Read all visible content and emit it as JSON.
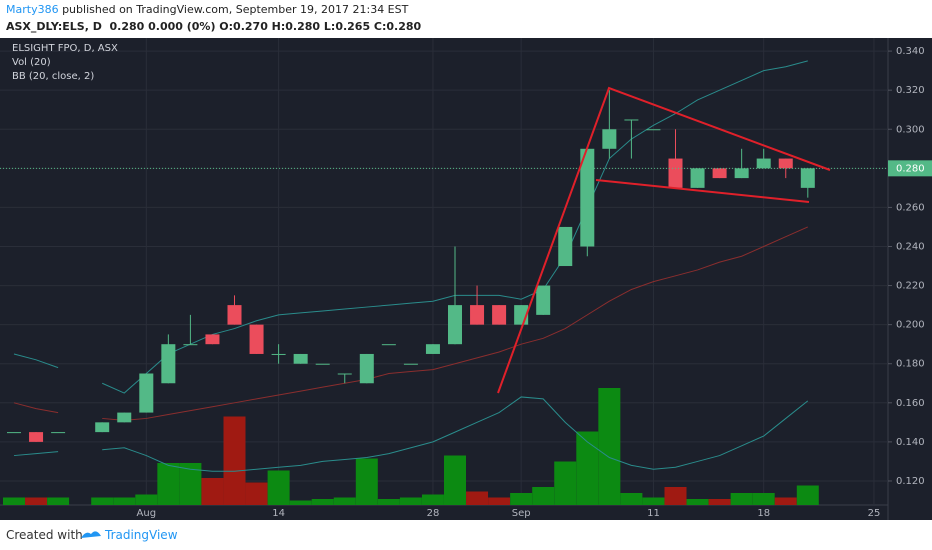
{
  "header": {
    "author": "Marty386",
    "published": "published on TradingView.com, September 19, 2017 21:34 EST",
    "symbol_line": "ASX_DLY:ELS, D  0.280 0.000 (0%) O:0.270 H:0.280 L:0.265 C:0.280"
  },
  "footer": {
    "created_with": "Created with",
    "brand": "TradingView"
  },
  "chart_data": {
    "type": "candlestick",
    "legend": [
      "ELSIGHT FPO, D, ASX",
      "Vol (20)",
      "BB (20, close, 2)"
    ],
    "categories": [
      null,
      null,
      null,
      null,
      null,
      null,
      "Aug",
      null,
      null,
      null,
      null,
      null,
      "14",
      null,
      null,
      null,
      null,
      null,
      null,
      "28",
      null,
      null,
      null,
      "Sep",
      null,
      null,
      null,
      null,
      null,
      "11",
      null,
      null,
      null,
      null,
      "18",
      null,
      null,
      null,
      null,
      "25"
    ],
    "open": [
      0.145,
      0.145,
      0.145,
      null,
      0.145,
      0.15,
      0.155,
      0.17,
      0.19,
      0.195,
      0.21,
      0.2,
      0.185,
      0.18,
      0.18,
      0.175,
      0.17,
      0.19,
      0.18,
      0.185,
      0.19,
      0.21,
      0.21,
      0.2,
      0.205,
      0.23,
      0.24,
      0.29,
      0.305,
      0.3,
      0.285,
      0.27,
      0.28,
      0.275,
      0.28,
      0.285,
      0.27,
      null,
      null,
      null
    ],
    "high": [
      0.145,
      0.145,
      0.145,
      null,
      0.15,
      0.155,
      0.175,
      0.195,
      0.205,
      0.195,
      0.215,
      0.2,
      0.19,
      0.185,
      0.18,
      0.175,
      0.185,
      0.19,
      0.18,
      0.19,
      0.24,
      0.22,
      0.21,
      0.21,
      0.22,
      0.25,
      0.29,
      0.32,
      0.305,
      0.3,
      0.3,
      0.28,
      0.28,
      0.29,
      0.29,
      0.285,
      0.28,
      null,
      null,
      null
    ],
    "low": [
      0.145,
      0.14,
      0.145,
      null,
      0.145,
      0.15,
      0.155,
      0.17,
      0.19,
      0.19,
      0.2,
      0.185,
      0.18,
      0.18,
      0.18,
      0.17,
      0.17,
      0.19,
      0.18,
      0.185,
      0.19,
      0.2,
      0.2,
      0.2,
      0.205,
      0.23,
      0.235,
      0.285,
      0.285,
      0.3,
      0.27,
      0.27,
      0.275,
      0.275,
      0.28,
      0.275,
      0.265,
      null,
      null,
      null
    ],
    "close": [
      0.145,
      0.14,
      0.145,
      null,
      0.15,
      0.155,
      0.175,
      0.19,
      0.19,
      0.19,
      0.2,
      0.185,
      0.185,
      0.185,
      0.18,
      0.175,
      0.185,
      0.19,
      0.18,
      0.19,
      0.21,
      0.2,
      0.2,
      0.21,
      0.22,
      0.25,
      0.29,
      0.3,
      0.305,
      0.3,
      0.27,
      0.28,
      0.275,
      0.28,
      0.285,
      0.28,
      0.28,
      null,
      null,
      null
    ],
    "volume": {
      "axis": "y2",
      "values": [
        5,
        5,
        5,
        null,
        5,
        5,
        7,
        28,
        28,
        18,
        59,
        15,
        23,
        3,
        4,
        5,
        31,
        4,
        5,
        7,
        33,
        9,
        5,
        8,
        12,
        29,
        49,
        78,
        8,
        5,
        12,
        4,
        4,
        8,
        8,
        5,
        13,
        null,
        null,
        null
      ]
    },
    "series": [
      {
        "name": "BB upper",
        "color": "#2a8c8c",
        "values": [
          0.185,
          0.182,
          0.178,
          null,
          0.17,
          0.165,
          0.175,
          0.185,
          0.19,
          0.195,
          0.198,
          0.202,
          0.205,
          0.206,
          0.207,
          0.208,
          0.209,
          0.21,
          0.211,
          0.212,
          0.215,
          0.215,
          0.215,
          0.213,
          0.218,
          0.235,
          0.26,
          0.285,
          0.295,
          0.302,
          0.308,
          0.315,
          0.32,
          0.325,
          0.33,
          0.332,
          0.335,
          null,
          null,
          null
        ]
      },
      {
        "name": "BB basis",
        "color": "#8b2e2e",
        "values": [
          0.16,
          0.157,
          0.155,
          null,
          0.152,
          0.151,
          0.152,
          0.154,
          0.156,
          0.158,
          0.16,
          0.162,
          0.164,
          0.166,
          0.168,
          0.17,
          0.172,
          0.175,
          0.176,
          0.177,
          0.18,
          0.183,
          0.186,
          0.19,
          0.193,
          0.198,
          0.205,
          0.212,
          0.218,
          0.222,
          0.225,
          0.228,
          0.232,
          0.235,
          0.24,
          0.245,
          0.25,
          null,
          null,
          null
        ]
      },
      {
        "name": "BB lower",
        "color": "#2a8c8c",
        "values": [
          0.133,
          0.134,
          0.135,
          null,
          0.136,
          0.137,
          0.133,
          0.128,
          0.126,
          0.125,
          0.125,
          0.126,
          0.127,
          0.128,
          0.13,
          0.131,
          0.132,
          0.134,
          0.137,
          0.14,
          0.145,
          0.15,
          0.155,
          0.163,
          0.162,
          0.15,
          0.14,
          0.132,
          0.128,
          0.126,
          0.127,
          0.13,
          0.133,
          0.138,
          0.143,
          0.152,
          0.161,
          null,
          null,
          null
        ]
      }
    ],
    "up_color": "#53b987",
    "down_color": "#eb4d5c",
    "volume_up_color": "#0c8a12",
    "volume_down_color": "#a01a12",
    "ylim": [
      0.1077,
      0.3467
    ],
    "y2lim": [
      0,
      100
    ],
    "yticks": [
      {
        "value": 0.12,
        "label": "0.120"
      },
      {
        "value": 0.14,
        "label": "0.140"
      },
      {
        "value": 0.16,
        "label": "0.160"
      },
      {
        "value": 0.18,
        "label": "0.180"
      },
      {
        "value": 0.2,
        "label": "0.200"
      },
      {
        "value": 0.22,
        "label": "0.220"
      },
      {
        "value": 0.24,
        "label": "0.240"
      },
      {
        "value": 0.26,
        "label": "0.260"
      },
      {
        "value": 0.28,
        "label": "0.280"
      },
      {
        "value": 0.3,
        "label": "0.300"
      },
      {
        "value": 0.32,
        "label": "0.320"
      },
      {
        "value": 0.34,
        "label": "0.340"
      }
    ],
    "price_marker": {
      "value": 0.28,
      "label": "0.280",
      "color": "#53b987"
    },
    "grid": true
  }
}
